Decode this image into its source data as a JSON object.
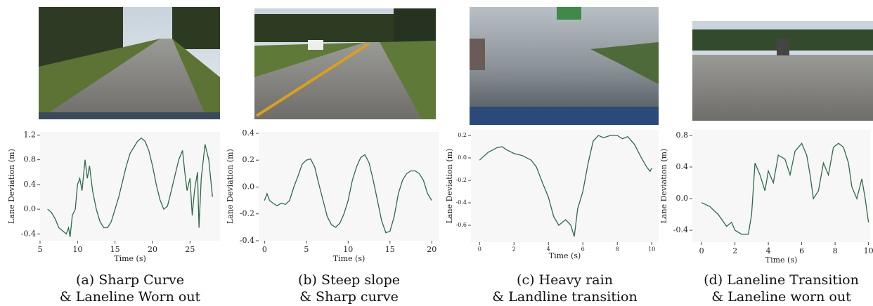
{
  "chart_data": [
    {
      "type": "line",
      "xlabel": "Time (s)",
      "ylabel": "Lane Deviation (m)",
      "color": "#2e6b4a",
      "xlim": [
        5,
        29
      ],
      "ylim": [
        -0.51,
        1.25
      ],
      "xticks": [
        5,
        10,
        15,
        20,
        25
      ],
      "yticks": [
        1.2,
        0.8,
        0.4,
        {
          "value": 0,
          "label": "0.0"
        },
        -0.4
      ],
      "x": [
        6,
        6.5,
        7,
        7.5,
        8,
        8.5,
        8.8,
        9,
        9.3,
        9.7,
        10,
        10.3,
        10.6,
        11,
        11.3,
        11.6,
        12,
        12.5,
        13,
        13.5,
        14,
        14.5,
        15,
        15.5,
        16,
        16.5,
        17,
        17.5,
        18,
        18.5,
        19,
        19.5,
        20,
        20.5,
        21,
        21.5,
        22,
        22.5,
        23,
        23.5,
        24,
        24.3,
        24.6,
        25,
        25.3,
        25.6,
        26,
        26.2,
        26.5,
        27,
        27.5,
        28
      ],
      "values": [
        0,
        -0.05,
        -0.15,
        -0.3,
        -0.35,
        -0.4,
        -0.3,
        -0.45,
        -0.1,
        0,
        0.4,
        0.5,
        0.3,
        0.8,
        0.5,
        0.7,
        0.3,
        0,
        -0.2,
        -0.3,
        -0.3,
        -0.2,
        0,
        0.2,
        0.45,
        0.7,
        0.9,
        1.0,
        1.1,
        1.15,
        1.1,
        0.95,
        0.7,
        0.4,
        0.15,
        0,
        0.05,
        0.3,
        0.55,
        0.8,
        0.95,
        0.6,
        0.3,
        0.5,
        -0.1,
        0.3,
        0.6,
        -0.3,
        0.5,
        1.05,
        0.8,
        0.2
      ],
      "caption": [
        "(a) Sharp Curve",
        "& Laneline Worn out"
      ]
    },
    {
      "type": "line",
      "xlabel": "Time (s)",
      "ylabel": "Lane Deviation (m)",
      "color": "#2e6b4a",
      "xlim": [
        -0.7,
        20.9
      ],
      "ylim": [
        -0.4,
        0.41
      ],
      "xticks": [
        0,
        5,
        10,
        15,
        20
      ],
      "yticks": [
        0.4,
        0.2,
        {
          "value": 0,
          "label": "0.0"
        },
        -0.2,
        -0.4
      ],
      "x": [
        0,
        0.3,
        0.6,
        1,
        1.5,
        2,
        2.5,
        3,
        3.5,
        4,
        4.5,
        5,
        5.5,
        6,
        6.5,
        7,
        7.5,
        8,
        8.5,
        9,
        9.5,
        10,
        10.5,
        11,
        11.5,
        12,
        12.5,
        13,
        13.5,
        14,
        14.5,
        15,
        15.5,
        16,
        16.5,
        17,
        17.5,
        18,
        18.5,
        19,
        19.5,
        20
      ],
      "values": [
        -0.1,
        -0.05,
        -0.1,
        -0.12,
        -0.14,
        -0.12,
        -0.13,
        -0.1,
        0,
        0.08,
        0.17,
        0.2,
        0.21,
        0.15,
        0.02,
        -0.1,
        -0.22,
        -0.28,
        -0.3,
        -0.27,
        -0.2,
        -0.1,
        0.05,
        0.15,
        0.22,
        0.24,
        0.18,
        0.05,
        -0.1,
        -0.25,
        -0.34,
        -0.33,
        -0.22,
        -0.05,
        0.05,
        0.1,
        0.12,
        0.12,
        0.1,
        0.05,
        -0.05,
        -0.1
      ],
      "caption": [
        "(b) Steep slope",
        "& Sharp curve"
      ]
    },
    {
      "type": "line",
      "xlabel": "Time (s)",
      "ylabel": "Lane Deviation (m)",
      "color": "#2e6b4a",
      "xlim": [
        -0.5,
        10.4
      ],
      "ylim": [
        -0.75,
        0.25
      ],
      "xticks": [
        0,
        2,
        4,
        6,
        8,
        10
      ],
      "yticks": [
        0.2,
        {
          "value": 0,
          "label": "0.0"
        },
        -0.2,
        -0.4,
        -0.6
      ],
      "x": [
        0,
        0.5,
        1,
        1.3,
        1.6,
        2,
        2.5,
        3,
        3.3,
        3.6,
        4,
        4.3,
        4.6,
        5,
        5.3,
        5.5,
        5.7,
        6,
        6.3,
        6.6,
        6.9,
        7.2,
        7.6,
        8,
        8.3,
        8.6,
        9,
        9.4,
        9.7,
        9.9,
        10
      ],
      "values": [
        -0.02,
        0.05,
        0.09,
        0.1,
        0.07,
        0.04,
        0.02,
        -0.02,
        -0.08,
        -0.2,
        -0.35,
        -0.52,
        -0.6,
        -0.55,
        -0.6,
        -0.7,
        -0.45,
        -0.3,
        -0.05,
        0.15,
        0.2,
        0.18,
        0.2,
        0.2,
        0.17,
        0.19,
        0.12,
        0,
        -0.08,
        -0.12,
        -0.09
      ],
      "caption": [
        "(c) Heavy rain",
        "& Landline transition"
      ]
    },
    {
      "type": "line",
      "xlabel": "Time (s)",
      "ylabel": "Lane Deviation (m)",
      "color": "#2e6b4a",
      "xlim": [
        -0.55,
        10.1
      ],
      "ylim": [
        -0.55,
        0.87
      ],
      "xticks": [
        0,
        2,
        4,
        6,
        8,
        10
      ],
      "yticks": [
        0.8,
        0.4,
        {
          "value": 0,
          "label": "0.0"
        },
        -0.4
      ],
      "x": [
        0,
        0.5,
        1,
        1.5,
        1.8,
        2,
        2.4,
        2.8,
        3,
        3.2,
        3.5,
        3.8,
        4,
        4.3,
        4.6,
        5,
        5.3,
        5.6,
        6,
        6.3,
        6.5,
        6.7,
        7,
        7.3,
        7.6,
        7.9,
        8.2,
        8.5,
        8.8,
        9,
        9.3,
        9.6,
        9.8,
        10
      ],
      "values": [
        -0.05,
        -0.1,
        -0.2,
        -0.35,
        -0.3,
        -0.4,
        -0.45,
        -0.45,
        -0.2,
        0.45,
        0.3,
        0.1,
        0.35,
        0.2,
        0.55,
        0.5,
        0.3,
        0.6,
        0.7,
        0.55,
        0.3,
        0,
        0.1,
        0.45,
        0.3,
        0.65,
        0.7,
        0.65,
        0.45,
        0.15,
        0,
        0.25,
        0,
        -0.3
      ],
      "caption": [
        "(d) Laneline Transition",
        "& Laneline worn out"
      ]
    }
  ]
}
